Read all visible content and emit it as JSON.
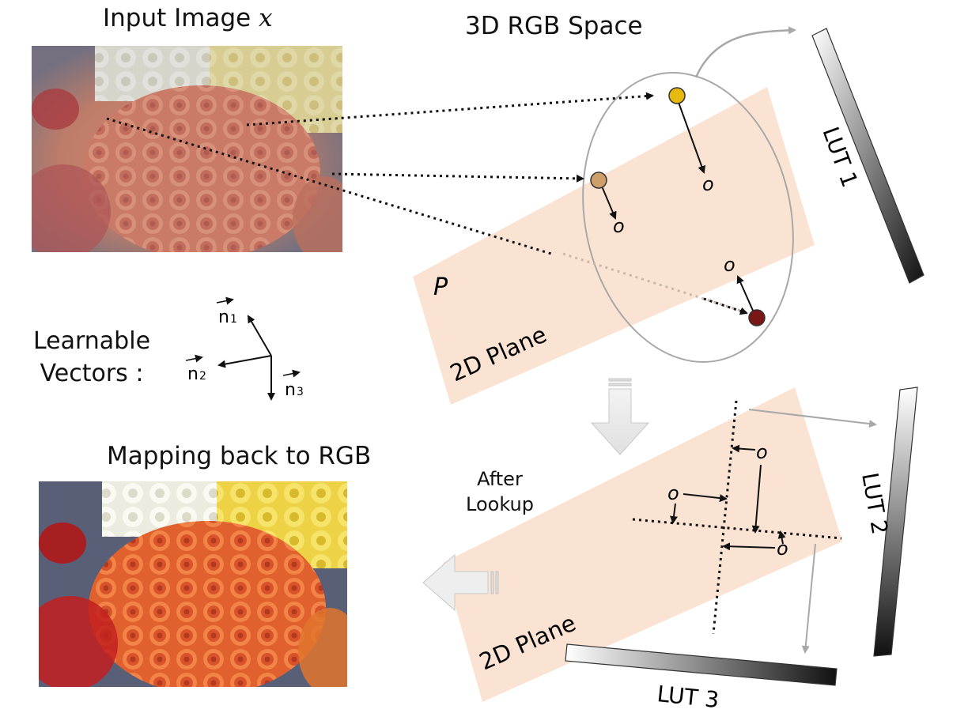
{
  "title_input_prefix": "Input Image",
  "title_input_var": "x",
  "title_rgb": "3D RGB Space",
  "learnable_line1": "Learnable",
  "learnable_line2": "Vectors :",
  "mapping_back": "Mapping back to RGB",
  "after_line1": "After",
  "after_line2": "Lookup",
  "plane_label_top": "2D Plane",
  "plane_label_bottom": "2D Plane",
  "plane_symbol": "P",
  "lut1": "LUT 1",
  "lut2": "LUT 2",
  "lut3": "LUT 3",
  "vec_n1": "n",
  "vec_n1_sub": "1",
  "vec_n2": "n",
  "vec_n2_sub": "2",
  "vec_n3": "n",
  "vec_n3_sub": "3",
  "origin_symbol": "o",
  "colors": {
    "plane": "#fbe3d3",
    "yellow_point": "#e7b90e",
    "tan_point": "#cf9f6a",
    "red_point": "#7a1616",
    "ellipse": "#a8a8a8"
  }
}
